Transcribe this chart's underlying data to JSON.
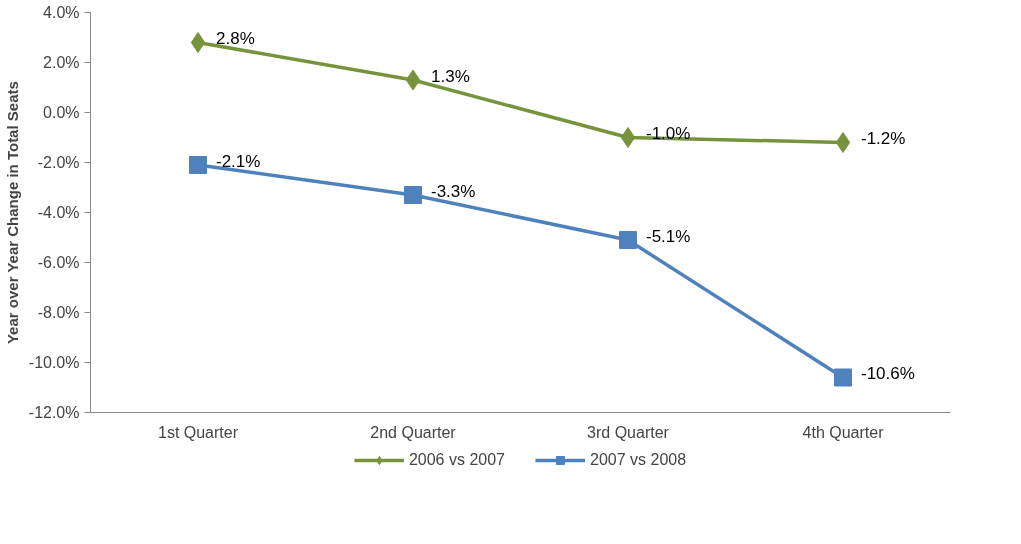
{
  "chart_data": {
    "type": "line",
    "ylabel": "Year over Year Change in Total Seats",
    "categories": [
      "1st Quarter",
      "2nd Quarter",
      "3rd Quarter",
      "4th Quarter"
    ],
    "series": [
      {
        "name": "2006 vs 2007",
        "color": "#77933c",
        "marker": "diamond",
        "values": [
          2.8,
          1.3,
          -1.0,
          -1.2
        ],
        "value_labels": [
          "2.8%",
          "1.3%",
          "-1.0%",
          "-1.2%"
        ]
      },
      {
        "name": "2007 vs 2008",
        "color": "#4f81bd",
        "marker": "square",
        "values": [
          -2.1,
          -3.3,
          -5.1,
          -10.6
        ],
        "value_labels": [
          "-2.1%",
          "-3.3%",
          "-5.1%",
          "-10.6%"
        ]
      }
    ],
    "ylim": [
      -12,
      4
    ],
    "yticks": [
      {
        "value": 4,
        "label": "4.0%"
      },
      {
        "value": 2,
        "label": "2.0%"
      },
      {
        "value": 0,
        "label": "0.0%"
      },
      {
        "value": -2,
        "label": "-2.0%"
      },
      {
        "value": -4,
        "label": "-4.0%"
      },
      {
        "value": -6,
        "label": "-6.0%"
      },
      {
        "value": -8,
        "label": "-8.0%"
      },
      {
        "value": -10,
        "label": "-10.0%"
      },
      {
        "value": -12,
        "label": "-12.0%"
      }
    ],
    "grid": false,
    "legend": "bottom",
    "line_style": "solid"
  }
}
